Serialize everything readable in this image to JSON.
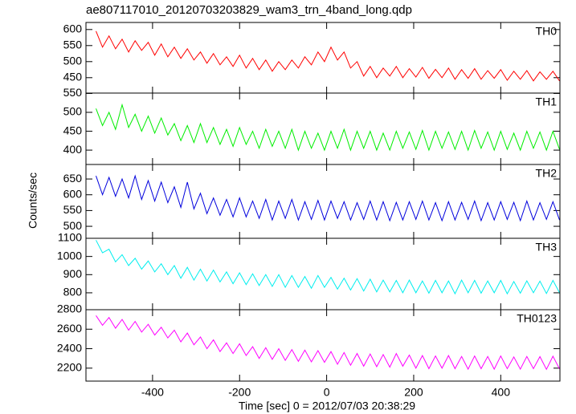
{
  "chart_data": {
    "type": "line",
    "title": "ae807117010_20120703203829_wam3_trn_4band_long.qdp",
    "xlabel": "Time [sec] 0 = 2012/07/03 20:38:29",
    "ylabel": "Counts/sec",
    "xlim": [
      -553,
      536
    ],
    "xticks": [
      -400,
      -200,
      0,
      200,
      400
    ],
    "x": [
      -530,
      -515,
      -500,
      -485,
      -470,
      -455,
      -440,
      -425,
      -410,
      -395,
      -380,
      -365,
      -350,
      -335,
      -320,
      -305,
      -290,
      -275,
      -260,
      -245,
      -230,
      -215,
      -200,
      -185,
      -170,
      -155,
      -140,
      -125,
      -110,
      -95,
      -80,
      -65,
      -50,
      -35,
      -20,
      -5,
      10,
      25,
      40,
      55,
      70,
      85,
      100,
      115,
      130,
      145,
      160,
      175,
      190,
      205,
      220,
      235,
      250,
      265,
      280,
      295,
      310,
      325,
      340,
      355,
      370,
      385,
      400,
      415,
      430,
      445,
      460,
      475,
      490,
      505,
      520,
      535
    ],
    "panels": [
      {
        "name": "TH0",
        "color": "#ff0000",
        "ylim": [
          402,
          622
        ],
        "yticks": [
          450,
          500,
          550,
          600
        ],
        "values": [
          595,
          545,
          580,
          540,
          570,
          530,
          565,
          535,
          560,
          520,
          555,
          515,
          545,
          510,
          540,
          505,
          530,
          495,
          525,
          490,
          515,
          485,
          520,
          480,
          510,
          475,
          505,
          470,
          500,
          475,
          505,
          480,
          515,
          490,
          530,
          500,
          545,
          505,
          530,
          480,
          500,
          455,
          485,
          450,
          480,
          455,
          485,
          450,
          478,
          452,
          482,
          448,
          476,
          450,
          480,
          445,
          475,
          448,
          478,
          445,
          472,
          448,
          475,
          442,
          470,
          445,
          472,
          440,
          468,
          445,
          470,
          440
        ]
      },
      {
        "name": "TH1",
        "color": "#00ee00",
        "ylim": [
          362,
          551
        ],
        "yticks": [
          400,
          450,
          500,
          550
        ],
        "values": [
          510,
          465,
          500,
          455,
          520,
          460,
          495,
          450,
          490,
          445,
          485,
          440,
          470,
          425,
          465,
          420,
          470,
          420,
          460,
          415,
          455,
          410,
          460,
          415,
          450,
          405,
          455,
          410,
          450,
          405,
          455,
          400,
          450,
          405,
          445,
          400,
          450,
          405,
          455,
          400,
          450,
          405,
          450,
          400,
          445,
          400,
          450,
          405,
          448,
          402,
          452,
          400,
          450,
          405,
          448,
          402,
          450,
          400,
          452,
          405,
          448,
          400,
          450,
          402,
          445,
          400,
          450,
          405,
          448,
          400,
          450,
          402
        ]
      },
      {
        "name": "TH2",
        "color": "#0000dd",
        "ylim": [
          462,
          696
        ],
        "yticks": [
          500,
          550,
          600,
          650
        ],
        "values": [
          660,
          600,
          655,
          595,
          650,
          590,
          660,
          585,
          645,
          580,
          640,
          575,
          625,
          560,
          640,
          555,
          605,
          540,
          590,
          535,
          585,
          530,
          590,
          530,
          580,
          525,
          585,
          520,
          580,
          525,
          585,
          520,
          578,
          522,
          582,
          520,
          580,
          525,
          578,
          520,
          575,
          522,
          580,
          520,
          578,
          518,
          576,
          520,
          578,
          522,
          580,
          520,
          575,
          518,
          578,
          520,
          576,
          522,
          580,
          518,
          575,
          520,
          578,
          522,
          576,
          518,
          580,
          520,
          575,
          522,
          578,
          520
        ]
      },
      {
        "name": "TH3",
        "color": "#00eeee",
        "ylim": [
          707,
          1100
        ],
        "yticks": [
          800,
          900,
          1000,
          1100
        ],
        "values": [
          1090,
          1020,
          1040,
          970,
          1010,
          950,
          990,
          930,
          975,
          915,
          960,
          900,
          950,
          880,
          940,
          870,
          930,
          865,
          925,
          860,
          915,
          850,
          910,
          845,
          905,
          840,
          900,
          835,
          900,
          830,
          895,
          830,
          890,
          825,
          895,
          830,
          885,
          820,
          880,
          815,
          878,
          810,
          875,
          805,
          870,
          805,
          868,
          800,
          870,
          800,
          865,
          798,
          868,
          800,
          865,
          795,
          870,
          800,
          868,
          798,
          865,
          800,
          868,
          795,
          862,
          798,
          866,
          800,
          864,
          796,
          868,
          800
        ]
      },
      {
        "name": "TH0123",
        "color": "#ff00ff",
        "ylim": [
          2067,
          2800
        ],
        "yticks": [
          2200,
          2400,
          2600,
          2800
        ],
        "values": [
          2740,
          2640,
          2720,
          2610,
          2700,
          2590,
          2680,
          2570,
          2650,
          2540,
          2620,
          2510,
          2590,
          2470,
          2560,
          2440,
          2520,
          2400,
          2490,
          2370,
          2460,
          2350,
          2450,
          2330,
          2420,
          2300,
          2410,
          2290,
          2400,
          2280,
          2390,
          2270,
          2385,
          2265,
          2380,
          2260,
          2370,
          2240,
          2360,
          2230,
          2350,
          2220,
          2345,
          2215,
          2340,
          2210,
          2350,
          2220,
          2335,
          2200,
          2330,
          2195,
          2325,
          2200,
          2330,
          2195,
          2320,
          2190,
          2325,
          2195,
          2320,
          2190,
          2325,
          2195,
          2315,
          2190,
          2320,
          2195,
          2318,
          2188,
          2322,
          2192
        ]
      }
    ]
  }
}
